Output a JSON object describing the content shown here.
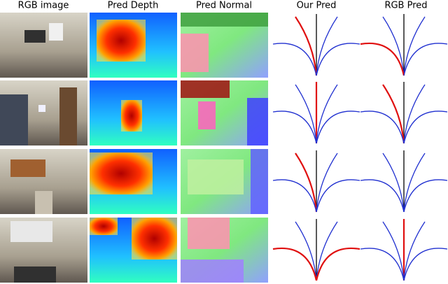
{
  "headers": [
    "RGB image",
    "Pred Depth",
    "Pred Normal",
    "Our Pred",
    "RGB Pred"
  ]
}
